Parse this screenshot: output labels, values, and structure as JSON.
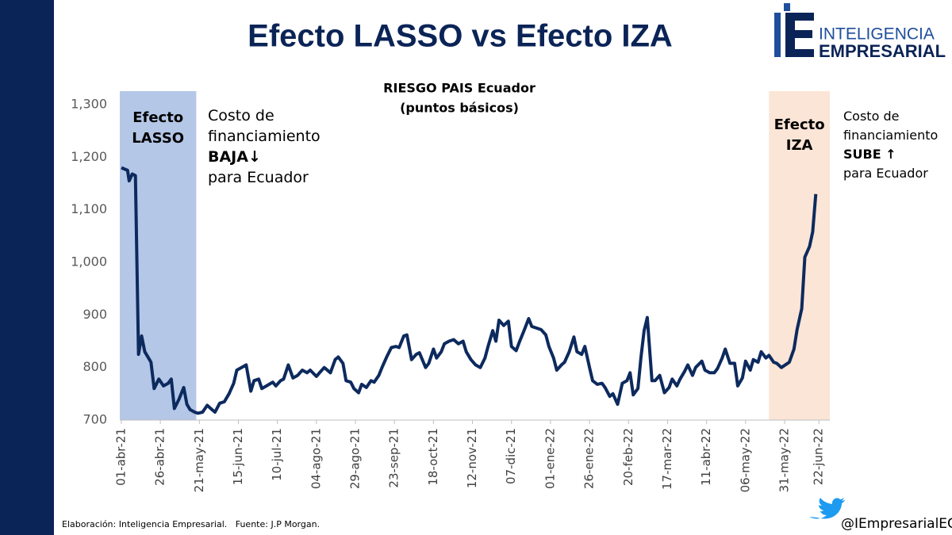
{
  "header": {
    "title": "Efecto LASSO vs Efecto IZA",
    "logo_line1": "INTELIGENCIA",
    "logo_line2": "EMPRESARIAL"
  },
  "chart_data": {
    "type": "line",
    "title": "RIESGO PAIS Ecuador",
    "subtitle": "(puntos básicos)",
    "x": [
      "2021-04-01",
      "2021-04-05",
      "2021-04-06",
      "2021-04-08",
      "2021-04-10",
      "2021-04-12",
      "2021-04-14",
      "2021-04-16",
      "2021-04-19",
      "2021-04-20",
      "2021-04-22",
      "2021-04-25",
      "2021-04-28",
      "2021-05-01",
      "2021-05-03",
      "2021-05-05",
      "2021-05-08",
      "2021-05-11",
      "2021-05-13",
      "2021-05-15",
      "2021-05-18",
      "2021-05-20",
      "2021-05-23",
      "2021-05-26",
      "2021-05-29",
      "2021-05-31",
      "2021-06-03",
      "2021-06-06",
      "2021-06-09",
      "2021-06-12",
      "2021-06-14",
      "2021-06-17",
      "2021-06-20",
      "2021-06-23",
      "2021-06-25",
      "2021-06-28",
      "2021-06-30",
      "2021-07-03",
      "2021-07-07",
      "2021-07-09",
      "2021-07-12",
      "2021-07-14",
      "2021-07-17",
      "2021-07-20",
      "2021-07-23",
      "2021-07-26",
      "2021-07-29",
      "2021-07-31",
      "2021-08-04",
      "2021-08-06",
      "2021-08-09",
      "2021-08-13",
      "2021-08-16",
      "2021-08-18",
      "2021-08-21",
      "2021-08-23",
      "2021-08-26",
      "2021-08-28",
      "2021-08-31",
      "2021-09-02",
      "2021-09-05",
      "2021-09-08",
      "2021-09-10",
      "2021-09-13",
      "2021-09-15",
      "2021-09-18",
      "2021-09-21",
      "2021-09-24",
      "2021-09-26",
      "2021-09-29",
      "2021-10-01",
      "2021-10-04",
      "2021-10-07",
      "2021-10-09",
      "2021-10-13",
      "2021-10-15",
      "2021-10-18",
      "2021-10-20",
      "2021-10-23",
      "2021-10-25",
      "2021-10-28",
      "2021-10-31",
      "2021-11-03",
      "2021-11-06",
      "2021-11-08",
      "2021-11-11",
      "2021-11-14",
      "2021-11-17",
      "2021-11-20",
      "2021-11-22",
      "2021-11-25",
      "2021-11-27",
      "2021-11-29",
      "2021-12-02",
      "2021-12-05",
      "2021-12-07",
      "2021-12-10",
      "2021-12-12",
      "2021-12-15",
      "2021-12-18",
      "2021-12-20",
      "2021-12-23",
      "2021-12-26",
      "2021-12-29",
      "2021-12-31",
      "2022-01-03",
      "2022-01-05",
      "2022-01-08",
      "2022-01-10",
      "2022-01-13",
      "2022-01-16",
      "2022-01-18",
      "2022-01-21",
      "2022-01-23",
      "2022-01-26",
      "2022-01-28",
      "2022-01-31",
      "2022-02-03",
      "2022-02-05",
      "2022-02-08",
      "2022-02-10",
      "2022-02-13",
      "2022-02-16",
      "2022-02-19",
      "2022-02-21",
      "2022-02-23",
      "2022-02-26",
      "2022-02-28",
      "2022-03-02",
      "2022-03-04",
      "2022-03-07",
      "2022-03-09",
      "2022-03-12",
      "2022-03-15",
      "2022-03-18",
      "2022-03-20",
      "2022-03-23",
      "2022-03-25",
      "2022-03-28",
      "2022-03-30",
      "2022-04-02",
      "2022-04-04",
      "2022-04-08",
      "2022-04-10",
      "2022-04-13",
      "2022-04-16",
      "2022-04-18",
      "2022-04-21",
      "2022-04-23",
      "2022-04-26",
      "2022-04-29",
      "2022-05-01",
      "2022-05-04",
      "2022-05-06",
      "2022-05-09",
      "2022-05-11",
      "2022-05-14",
      "2022-05-16",
      "2022-05-19",
      "2022-05-21",
      "2022-05-24",
      "2022-05-26",
      "2022-05-29",
      "2022-06-01",
      "2022-06-03",
      "2022-06-06",
      "2022-06-08",
      "2022-06-11",
      "2022-06-13",
      "2022-06-16",
      "2022-06-18",
      "2022-06-20"
    ],
    "series": [
      {
        "name": "RIESGO PAIS Ecuador",
        "color": "#0d2a5e",
        "values": [
          1180,
          1175,
          1155,
          1168,
          1165,
          825,
          860,
          830,
          815,
          810,
          760,
          778,
          765,
          770,
          778,
          722,
          740,
          762,
          730,
          720,
          715,
          713,
          715,
          728,
          720,
          715,
          732,
          735,
          750,
          770,
          795,
          800,
          805,
          755,
          775,
          778,
          760,
          765,
          772,
          765,
          775,
          778,
          805,
          780,
          785,
          795,
          790,
          795,
          783,
          790,
          800,
          790,
          815,
          820,
          808,
          775,
          772,
          760,
          752,
          768,
          762,
          775,
          772,
          785,
          800,
          820,
          838,
          840,
          838,
          860,
          862,
          815,
          825,
          828,
          800,
          808,
          835,
          818,
          830,
          845,
          850,
          853,
          845,
          850,
          830,
          815,
          805,
          800,
          818,
          840,
          870,
          850,
          890,
          880,
          888,
          840,
          832,
          848,
          870,
          893,
          878,
          875,
          872,
          862,
          840,
          818,
          795,
          805,
          810,
          830,
          858,
          830,
          825,
          840,
          800,
          775,
          768,
          770,
          762,
          745,
          750,
          730,
          770,
          775,
          790,
          748,
          760,
          820,
          870,
          895,
          775,
          775,
          785,
          752,
          762,
          778,
          765,
          778,
          793,
          805,
          785,
          800,
          812,
          795,
          790,
          790,
          798,
          818,
          835,
          808,
          808,
          765,
          780,
          812,
          795,
          815,
          810,
          830,
          818,
          823,
          810,
          808,
          800,
          806,
          810,
          835,
          872,
          912,
          1010,
          1030,
          1058,
          1130
        ]
      }
    ],
    "xlim": [
      "2021-03-31",
      "2022-06-29"
    ],
    "xticks": [
      {
        "value": "2021-04-01",
        "label": "01-abr-21"
      },
      {
        "value": "2021-04-26",
        "label": "26-abr-21"
      },
      {
        "value": "2021-05-21",
        "label": "21-may-21"
      },
      {
        "value": "2021-06-15",
        "label": "15-jun-21"
      },
      {
        "value": "2021-07-10",
        "label": "10-jul-21"
      },
      {
        "value": "2021-08-04",
        "label": "04-ago-21"
      },
      {
        "value": "2021-08-29",
        "label": "29-ago-21"
      },
      {
        "value": "2021-09-23",
        "label": "23-sep-21"
      },
      {
        "value": "2021-10-18",
        "label": "18-oct-21"
      },
      {
        "value": "2021-11-12",
        "label": "12-nov-21"
      },
      {
        "value": "2021-12-07",
        "label": "07-dic-21"
      },
      {
        "value": "2022-01-01",
        "label": "01-ene-22"
      },
      {
        "value": "2022-01-26",
        "label": "26-ene-22"
      },
      {
        "value": "2022-02-20",
        "label": "20-feb-22"
      },
      {
        "value": "2022-03-17",
        "label": "17-mar-22"
      },
      {
        "value": "2022-04-11",
        "label": "11-abr-22"
      },
      {
        "value": "2022-05-06",
        "label": "06-may-22"
      },
      {
        "value": "2022-05-31",
        "label": "31-may-22"
      },
      {
        "value": "2022-06-22",
        "label": "22-jun-22"
      }
    ],
    "ylim": [
      700,
      1300
    ],
    "yticks": [
      700,
      800,
      900,
      {
        "value": 1000,
        "label": "1,000"
      },
      {
        "value": 1100,
        "label": "1,100"
      },
      {
        "value": 1200,
        "label": "1,200"
      },
      {
        "value": 1300,
        "label": "1,300"
      }
    ],
    "grid": false,
    "bands": [
      {
        "label": "Efecto LASSO",
        "start": "2021-03-31",
        "end": "2021-05-19",
        "color": "#b4c7e7"
      },
      {
        "label": "Efecto IZA",
        "start": "2022-05-21",
        "end": "2022-06-29",
        "color": "#fbe5d6"
      }
    ],
    "annotations": [
      {
        "lines": [
          "Costo de",
          "financiamiento",
          "BAJA↓",
          "para Ecuador"
        ],
        "bold_line": 2
      },
      {
        "lines": [
          "Costo de",
          "financiamiento",
          "SUBE ↑",
          "para Ecuador"
        ],
        "bold_line": 2
      }
    ]
  },
  "footer": {
    "source": "Elaboración: Inteligencia Empresarial.   Fuente: J.P Morgan.",
    "handle": "@IEmpresarialEC"
  }
}
